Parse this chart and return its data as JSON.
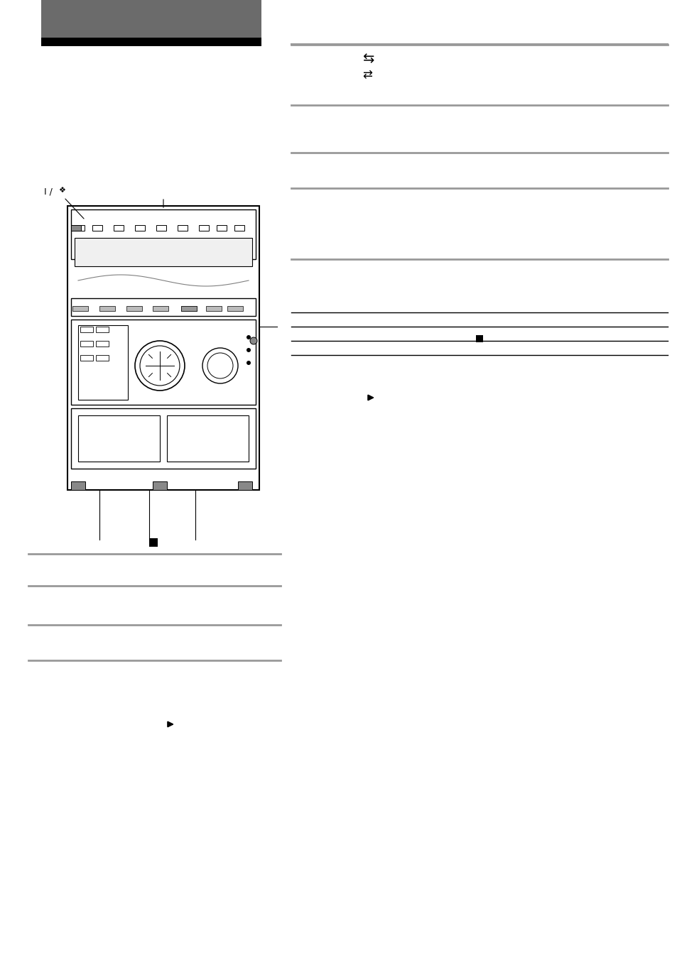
{
  "bg_color": "#ffffff",
  "header_bg": "#6b6b6b",
  "header_black_bar": "#000000",
  "header_right_line_color": "#aaaaaa",
  "gray_line_color": "#999999",
  "black_line_color": "#000000",
  "text_color": "#000000"
}
